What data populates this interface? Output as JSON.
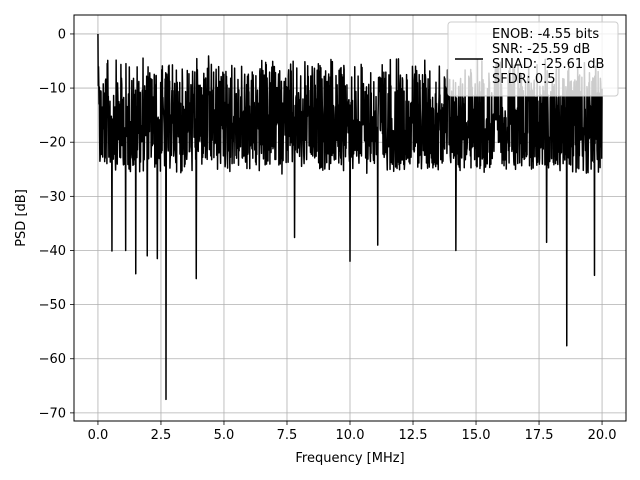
{
  "chart_data": {
    "type": "line",
    "title": "",
    "xlabel": "Frequency [MHz]",
    "ylabel": "PSD [dB]",
    "xlim": [
      -0.95,
      20.95
    ],
    "ylim": [
      -71.5,
      3.5
    ],
    "grid": true,
    "legend_placement": "top-right",
    "x_ticks": [
      0.0,
      2.5,
      5.0,
      7.5,
      10.0,
      12.5,
      15.0,
      17.5,
      20.0
    ],
    "x_tick_labels": [
      "0.0",
      "2.5",
      "5.0",
      "7.5",
      "10.0",
      "12.5",
      "15.0",
      "17.5",
      "20.0"
    ],
    "y_ticks": [
      0,
      -10,
      -20,
      -30,
      -40,
      -50,
      -60,
      -70
    ],
    "y_tick_labels": [
      "0",
      "−10",
      "−20",
      "−30",
      "−40",
      "−50",
      "−60",
      "−70"
    ],
    "line_color": "#000000",
    "legend": {
      "lines": [
        "ENOB: -4.55 bits",
        "SNR: -25.59 dB",
        "SINAD: -25.61 dB",
        "SFDR: 0.5"
      ]
    },
    "trace": {
      "description_values": {
        "peak_db": 0.0,
        "upper_envelope_db": -4.0,
        "typical_lower_db": -24.0,
        "x_start_mhz": 0.0,
        "x_end_mhz": 20.0
      },
      "notable_dips": [
        {
          "x": 0.55,
          "y": -40.1
        },
        {
          "x": 1.1,
          "y": -40.0
        },
        {
          "x": 1.5,
          "y": -44.3
        },
        {
          "x": 1.95,
          "y": -41.0
        },
        {
          "x": 2.35,
          "y": -41.5
        },
        {
          "x": 2.7,
          "y": -67.5
        },
        {
          "x": 3.9,
          "y": -45.2
        },
        {
          "x": 7.8,
          "y": -37.6
        },
        {
          "x": 10.0,
          "y": -42.0
        },
        {
          "x": 11.1,
          "y": -39.0
        },
        {
          "x": 14.2,
          "y": -40.0
        },
        {
          "x": 17.8,
          "y": -38.5
        },
        {
          "x": 18.6,
          "y": -57.6
        },
        {
          "x": 19.7,
          "y": -44.6
        }
      ]
    }
  }
}
